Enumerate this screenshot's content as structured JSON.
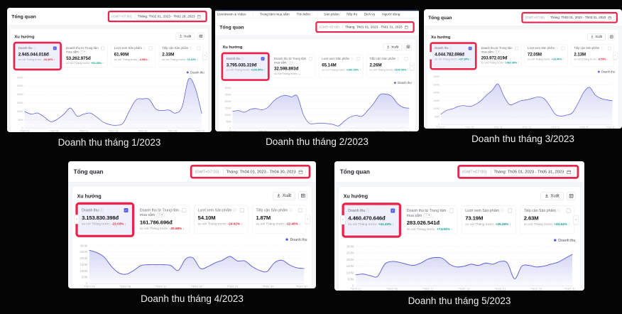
{
  "colors": {
    "highlight_red": "#e8244d",
    "accent_purple": "#5a5cd6",
    "positive_teal": "#0d9e93",
    "negative_red": "#e0283c"
  },
  "shared": {
    "title": "Tổng quan",
    "trend_title": "Xu hướng",
    "export_label": "Xuất",
    "gmt_label": "(GMT+07:00)",
    "legend_label": "Doanh thu",
    "compare_label": "so với Tháng trước:"
  },
  "nav": {
    "items": [
      "Livestream & Video",
      "Trung tâm mua sắm",
      "Tìm kiếm",
      "Sản phẩm",
      "Tiếp thị",
      "Dịch vụ",
      "Người dùng"
    ]
  },
  "captions": [
    "Doanh thu tháng 1/2023",
    "Doanh thu tháng 2/2023",
    "Doanh thu tháng 3/2023",
    "Doanh thu tháng 4/2023",
    "Doanh thu tháng 5/2023"
  ],
  "panels": [
    {
      "has_nav": false,
      "left_arrow": false,
      "date_range": "Tháng: Th02 01, 2023 - Th02 28, 2023",
      "cards": [
        {
          "title": "Doanh thu",
          "value": "2.945.044.018đ",
          "delta": "-22.40% ↓",
          "trend": "neg",
          "checked": true,
          "selected": true
        },
        {
          "title": "Doanh thu từ Trung tâm mua sắm",
          "value": "53.262.975đ",
          "delta": "+63.38% ↑",
          "trend": "pos",
          "pill": true
        },
        {
          "title": "Lượt xem Sản phẩm",
          "value": "61.90M",
          "delta": "-4.98% ↓",
          "trend": "neg"
        },
        {
          "title": "Tiếp cận Sản phẩm",
          "value": "2.33M",
          "delta": "+3.10% ↑",
          "trend": "pos"
        }
      ],
      "chart_data": {
        "type": "area",
        "series_name": "Doanh thu",
        "ylim": [
          0,
          300
        ],
        "y_ticks": [
          "300M",
          "250M",
          "200M",
          "150M",
          "100M",
          "50M",
          "0"
        ],
        "x_ticks": [
          "Th02 01",
          "Th02 06",
          "Th02 11",
          "Th02 16",
          "Th02 21",
          "Th02 26",
          "Th02 28"
        ],
        "values": [
          99,
          84,
          90,
          66,
          39,
          54,
          84,
          120,
          72,
          84,
          90,
          66,
          36,
          21,
          18,
          30,
          105,
          168,
          174,
          171,
          114,
          105,
          108,
          90,
          126,
          291,
          240,
          88
        ]
      }
    },
    {
      "has_nav": true,
      "left_arrow": false,
      "date_range": "Tháng: Th01 01, 2023 - Th01 31, 2023",
      "cards": [
        {
          "title": "Doanh thu",
          "value": "3.795.035.319đ",
          "delta": "+100.00% ↑",
          "trend": "pos",
          "checked": true,
          "selected": true
        },
        {
          "title": "Doanh thu từ Trung tâm mua sắm",
          "value": "32.598.893đ",
          "delta": "--",
          "trend": "none",
          "pill": true
        },
        {
          "title": "Lượt xem Sản phẩm",
          "value": "65.14M",
          "delta": "+100.00% ↑",
          "trend": "pos"
        },
        {
          "title": "Tiếp cận Sản phẩm",
          "value": "2.26M",
          "delta": "+100.00% ↑",
          "trend": "pos"
        }
      ],
      "chart_data": {
        "type": "area",
        "series_name": "Doanh thu",
        "ylim": [
          0,
          300
        ],
        "y_ticks": [
          "300M",
          "250M",
          "200M",
          "150M",
          "100M",
          "50M",
          "0"
        ],
        "x_ticks": [
          "Th01 01",
          "Th01 06",
          "Th01 11",
          "Th01 16",
          "Th01 21",
          "Th01 26",
          "Th01 31"
        ],
        "values": [
          126,
          132,
          120,
          141,
          147,
          138,
          156,
          204,
          234,
          246,
          234,
          240,
          105,
          39,
          36,
          39,
          36,
          30,
          18,
          54,
          84,
          96,
          90,
          135,
          186,
          249,
          255,
          240,
          186,
          156,
          150
        ]
      }
    },
    {
      "has_nav": false,
      "left_arrow": true,
      "date_range": "Tháng: Th03 01, 2023 - Th03 31, 2023",
      "cards": [
        {
          "title": "Doanh thu",
          "value": "4.044.782.698đ",
          "delta": "+37.34% ↑",
          "trend": "pos",
          "checked": true,
          "selected": true
        },
        {
          "title": "Doanh thu từ Trung tâm mua sắm",
          "value": "203.972.019đ",
          "delta": "+282.96% ↑",
          "trend": "pos",
          "pill": true
        },
        {
          "title": "Lượt xem Sản phẩm",
          "value": "72.05M",
          "delta": "+16.40% ↑",
          "trend": "pos"
        },
        {
          "title": "Tiếp cận Sản phẩm",
          "value": "2.13M",
          "delta": "-8.58% ↓",
          "trend": "neg"
        }
      ],
      "chart_data": {
        "type": "area",
        "series_name": "Doanh thu",
        "ylim": [
          0,
          300
        ],
        "y_ticks": [
          "300M",
          "250M",
          "200M",
          "150M",
          "100M",
          "50M",
          "0"
        ],
        "x_ticks": [
          "Th03 01",
          "Th03 06",
          "Th03 11",
          "Th03 16",
          "Th03 21",
          "Th03 26",
          "Th03 31"
        ],
        "values": [
          66,
          90,
          99,
          114,
          120,
          114,
          126,
          150,
          186,
          216,
          255,
          180,
          126,
          135,
          150,
          156,
          165,
          174,
          165,
          120,
          66,
          54,
          60,
          75,
          135,
          204,
          234,
          186,
          165,
          156,
          150
        ]
      }
    },
    {
      "has_nav": false,
      "left_arrow": true,
      "date_range": "Tháng: Th04 01, 2023 - Th04 30, 2023",
      "cards": [
        {
          "title": "Doanh thu",
          "value": "3.153.830.398đ",
          "delta": "-22.03% ↓",
          "trend": "neg",
          "checked": true,
          "selected": true
        },
        {
          "title": "Doanh thu từ Trung tâm mua sắm",
          "value": "161.786.696đ",
          "delta": "-20.68% ↓",
          "trend": "neg",
          "pill": true
        },
        {
          "title": "Lượt xem Sản phẩm",
          "value": "54.10M",
          "delta": "-24.92% ↓",
          "trend": "neg"
        },
        {
          "title": "Tiếp cận Sản phẩm",
          "value": "1.87M",
          "delta": "-12.48% ↓",
          "trend": "neg"
        }
      ],
      "chart_data": {
        "type": "area",
        "series_name": "Doanh thu",
        "ylim": [
          0,
          300
        ],
        "y_ticks": [
          "300M",
          "250M",
          "200M",
          "150M",
          "100M",
          "50M",
          "0"
        ],
        "x_ticks": [
          "Th04 01",
          "Th04 06",
          "Th04 11",
          "Th04 16",
          "Th04 21",
          "Th04 26",
          "Th04 30"
        ],
        "values": [
          264,
          246,
          210,
          135,
          84,
          75,
          105,
          144,
          150,
          150,
          150,
          144,
          105,
          195,
          204,
          120,
          135,
          165,
          186,
          216,
          180,
          180,
          135,
          105,
          96,
          165,
          186,
          150,
          126,
          120
        ]
      }
    },
    {
      "has_nav": false,
      "left_arrow": true,
      "date_range": "Tháng: Th05 01, 2023 - Th05 31, 2023",
      "cards": [
        {
          "title": "Doanh thu",
          "value": "4.460.470.646đ",
          "delta": "+41.43% ↑",
          "trend": "pos",
          "checked": true,
          "selected": true
        },
        {
          "title": "Doanh thu từ Trung tâm mua sắm",
          "value": "283.026.541đ",
          "delta": "+74.94% ↑",
          "trend": "pos",
          "pill": true
        },
        {
          "title": "Lượt xem Sản phẩm",
          "value": "73.19M",
          "delta": "+35.28% ↑",
          "trend": "pos"
        },
        {
          "title": "Tiếp cận Sản phẩm",
          "value": "2.63M",
          "delta": "+40.64% ↑",
          "trend": "pos"
        }
      ],
      "chart_data": {
        "type": "area",
        "series_name": "Doanh thu",
        "ylim": [
          0,
          300
        ],
        "y_ticks": [
          "300M",
          "250M",
          "200M",
          "150M",
          "100M",
          "50M",
          "0"
        ],
        "x_ticks": [
          "Th05 01",
          "Th05 06",
          "Th05 11",
          "Th05 16",
          "Th05 21",
          "Th05 26",
          "Th05 31"
        ],
        "values": [
          84,
          90,
          78,
          72,
          165,
          186,
          180,
          165,
          156,
          174,
          204,
          216,
          210,
          165,
          144,
          150,
          165,
          156,
          174,
          165,
          186,
          174,
          54,
          150,
          156,
          144,
          150,
          165,
          180,
          210,
          240
        ]
      }
    }
  ]
}
